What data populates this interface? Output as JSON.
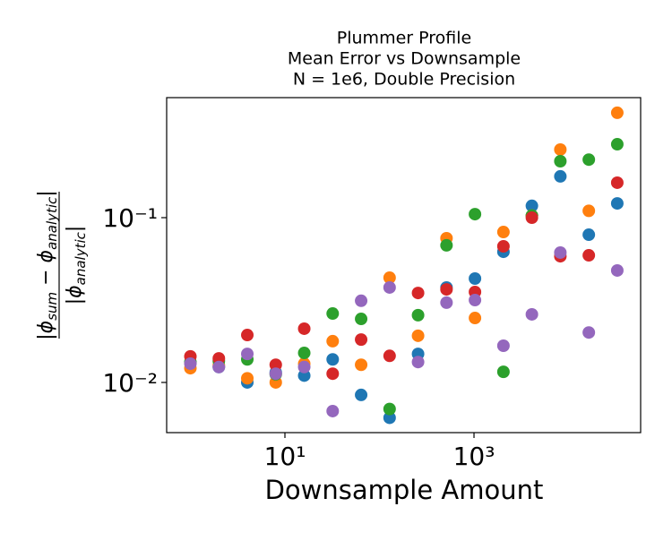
{
  "chart_data": {
    "type": "scatter",
    "title": [
      "Plummer Profile",
      "Mean Error vs Downsample",
      "N = 1e6, Double Precision"
    ],
    "xlabel": "Downsample Amount",
    "ylabel": {
      "numerator": [
        "|ϕ",
        "sum",
        " − ϕ",
        "analytic",
        "|"
      ],
      "denominator": [
        "|ϕ",
        "analytic",
        "|"
      ]
    },
    "x": [
      1,
      2,
      4,
      8,
      16,
      32,
      64,
      128,
      256,
      512,
      1024,
      2048,
      4096,
      8192,
      16384,
      32768
    ],
    "series": [
      {
        "color": "#1f77b4",
        "values": [
          0.0132,
          0.0124,
          0.01,
          0.0115,
          0.011,
          0.0138,
          0.0084,
          0.0061,
          0.0149,
          0.0377,
          0.0427,
          0.0621,
          0.118,
          0.178,
          0.0788,
          0.122
        ]
      },
      {
        "color": "#ff7f0e",
        "values": [
          0.0122,
          0.0127,
          0.0106,
          0.01,
          0.013,
          0.0178,
          0.0128,
          0.0432,
          0.0192,
          0.075,
          0.0246,
          0.0818,
          0.103,
          0.259,
          0.11,
          0.433
        ]
      },
      {
        "color": "#2ca02c",
        "values": [
          0.0133,
          0.0135,
          0.0138,
          0.0112,
          0.0151,
          0.0262,
          0.0243,
          0.0069,
          0.0256,
          0.0679,
          0.105,
          0.0116,
          0.103,
          0.22,
          0.225,
          0.279
        ]
      },
      {
        "color": "#d62728",
        "values": [
          0.0144,
          0.014,
          0.0194,
          0.0128,
          0.0212,
          0.0113,
          0.0182,
          0.0145,
          0.0349,
          0.0367,
          0.0354,
          0.067,
          0.1,
          0.0583,
          0.0591,
          0.163
        ]
      },
      {
        "color": "#9467bd",
        "values": [
          0.013,
          0.0124,
          0.0149,
          0.0113,
          0.0124,
          0.0067,
          0.0313,
          0.0377,
          0.0133,
          0.0305,
          0.0316,
          0.0167,
          0.0259,
          0.0614,
          0.0201,
          0.0478
        ]
      }
    ],
    "xscale": "log",
    "yscale": "log",
    "xlim": [
      0.561,
      57900
    ],
    "ylim": [
      0.00496,
      0.535
    ],
    "xticks": [
      {
        "value": 10,
        "label": "10¹"
      },
      {
        "value": 1000,
        "label": "10³"
      }
    ],
    "yticks": [
      {
        "value": 0.01,
        "label": "10⁻²"
      },
      {
        "value": 0.1,
        "label": "10⁻¹"
      }
    ],
    "grid": false
  }
}
